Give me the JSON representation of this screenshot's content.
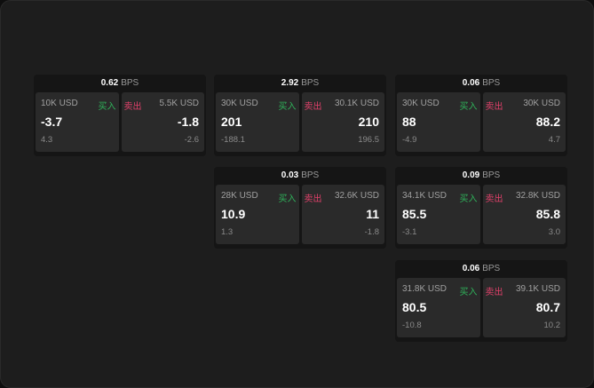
{
  "unit": "BPS",
  "buy_label": "买入",
  "sell_label": "卖出",
  "colors": {
    "buy": "#2fb35a",
    "sell": "#e0406a"
  },
  "panels": [
    {
      "spread": "0.62",
      "bid": {
        "size": "10K USD",
        "price": "-3.7",
        "change": "4.3"
      },
      "ask": {
        "size": "5.5K USD",
        "price": "-1.8",
        "change": "-2.6"
      }
    },
    {
      "spread": "2.92",
      "bid": {
        "size": "30K USD",
        "price": "201",
        "change": "-188.1"
      },
      "ask": {
        "size": "30.1K USD",
        "price": "210",
        "change": "196.5"
      }
    },
    {
      "spread": "0.06",
      "bid": {
        "size": "30K USD",
        "price": "88",
        "change": "-4.9"
      },
      "ask": {
        "size": "30K USD",
        "price": "88.2",
        "change": "4.7"
      }
    },
    {
      "spread": "0.03",
      "bid": {
        "size": "28K USD",
        "price": "10.9",
        "change": "1.3"
      },
      "ask": {
        "size": "32.6K USD",
        "price": "11",
        "change": "-1.8"
      }
    },
    {
      "spread": "0.09",
      "bid": {
        "size": "34.1K USD",
        "price": "85.5",
        "change": "-3.1"
      },
      "ask": {
        "size": "32.8K USD",
        "price": "85.8",
        "change": "3.0"
      }
    },
    {
      "spread": "0.06",
      "bid": {
        "size": "31.8K USD",
        "price": "80.5",
        "change": "-10.8"
      },
      "ask": {
        "size": "39.1K USD",
        "price": "80.7",
        "change": "10.2"
      }
    }
  ]
}
